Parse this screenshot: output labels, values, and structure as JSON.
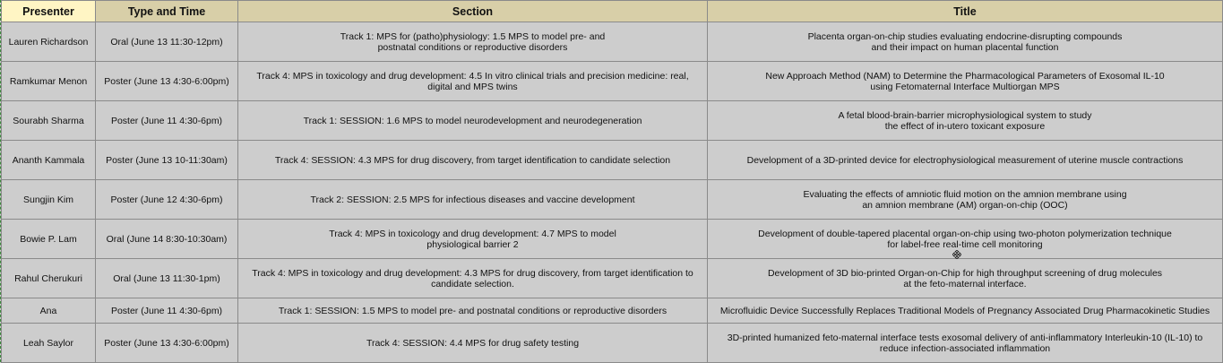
{
  "table": {
    "headers": [
      "Presenter",
      "Type and Time",
      "Section",
      "Title"
    ],
    "rows": [
      {
        "presenter": "Lauren Richardson",
        "type_time": "Oral (June 13 11:30-12pm)",
        "section": [
          "Track 1: MPS for (patho)physiology: 1.5 MPS to model pre- and",
          "postnatal conditions or reproductive disorders"
        ],
        "title": [
          "Placenta organ-on-chip studies evaluating endocrine-disrupting compounds",
          "and their impact on human placental function"
        ]
      },
      {
        "presenter": "Ramkumar Menon",
        "type_time": "Poster (June 13 4:30-6:00pm)",
        "section": [
          "Track 4: MPS in toxicology and drug development: 4.5 In vitro clinical trials and precision medicine: real,",
          "digital and MPS twins"
        ],
        "title": [
          "New Approach Method (NAM) to Determine the Pharmacological Parameters of Exosomal IL-10",
          "using Fetomaternal Interface Multiorgan MPS"
        ]
      },
      {
        "presenter": "Sourabh Sharma",
        "type_time": "Poster (June 11 4:30-6pm)",
        "section": [
          "Track 1: SESSION: 1.6 MPS to model neurodevelopment and neurodegeneration"
        ],
        "title": [
          "A fetal blood-brain-barrier microphysiological system to study",
          "the effect of in-utero toxicant exposure"
        ]
      },
      {
        "presenter": "Ananth Kammala",
        "type_time": "Poster (June 13 10-11:30am)",
        "section": [
          "Track 4: SESSION: 4.3 MPS for drug discovery, from target identification to candidate selection"
        ],
        "title": [
          "Development of a 3D-printed device for electrophysiological measurement of uterine muscle contractions"
        ]
      },
      {
        "presenter": "Sungjin Kim",
        "type_time": "Poster (June 12 4:30-6pm)",
        "section": [
          "Track 2: SESSION: 2.5 MPS for infectious diseases and vaccine development"
        ],
        "title": [
          "Evaluating the effects of amniotic fluid motion on the amnion membrane using",
          "an amnion membrane (AM) organ-on-chip (OOC)"
        ]
      },
      {
        "presenter": "Bowie P. Lam",
        "type_time": "Oral (June 14 8:30-10:30am)",
        "section": [
          "Track 4: MPS in toxicology and drug development: 4.7 MPS to model",
          "physiological barrier 2"
        ],
        "title": [
          "Development of double-tapered placental organ-on-chip using two-photon polymerization technique",
          "for label-free real-time cell monitoring"
        ]
      },
      {
        "presenter": "Rahul Cherukuri",
        "type_time": "Oral (June 13 11:30-1pm)",
        "section": [
          "Track 4: MPS in toxicology and drug development: 4.3 MPS for drug discovery, from target identification to",
          "candidate selection."
        ],
        "title": [
          "Development of 3D bio-printed Organ-on-Chip for high throughput screening of drug molecules",
          "at the feto-maternal interface."
        ]
      },
      {
        "presenter": "Ana",
        "type_time": "Poster (June 11 4:30-6pm)",
        "section": [
          "Track 1: SESSION: 1.5 MPS to model pre- and postnatal conditions or reproductive disorders"
        ],
        "title": [
          "Microfluidic Device Successfully Replaces Traditional Models of Pregnancy Associated Drug Pharmacokinetic Studies"
        ]
      },
      {
        "presenter": "Leah Saylor",
        "type_time": "Poster (June 13 4:30-6:00pm)",
        "section": [
          "Track 4: SESSION: 4.4 MPS for drug safety testing"
        ],
        "title": [
          "3D-printed humanized feto-maternal interface tests exosomal delivery of anti-inflammatory Interleukin-10 (IL-10) to",
          "reduce infection-associated inflammation"
        ]
      }
    ]
  },
  "colors": {
    "header_first": "#fff5c4",
    "header": "#d8cfa8",
    "cell": "#cdcdcd",
    "border": "#8a8a8a"
  },
  "cursor_icon": "move-cursor-icon"
}
